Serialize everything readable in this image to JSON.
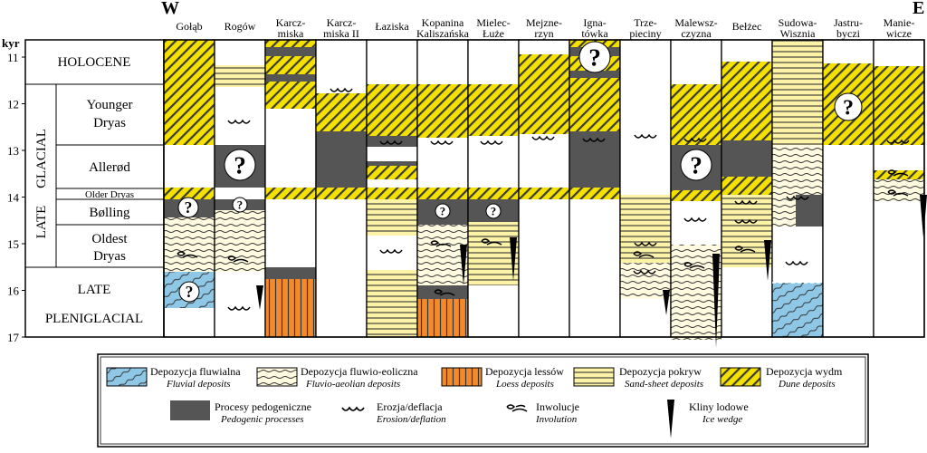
{
  "direction": {
    "west": "W",
    "east": "E"
  },
  "axis": {
    "unit": "kyr",
    "ticks": [
      "11",
      "12",
      "13",
      "14",
      "15",
      "16",
      "17"
    ]
  },
  "periods": {
    "holocene": "HOLOCENE",
    "late_glacial": [
      "LATE",
      "GLACIAL"
    ],
    "younger_dryas": [
      "Younger",
      "Dryas"
    ],
    "allerod": "Allerød",
    "older_dryas": "Older Dryas",
    "bolling": "Bølling",
    "oldest_dryas": [
      "Oldest",
      "Dryas"
    ],
    "late_pleniglacial": [
      "LATE",
      "PLENIGLACIAL"
    ]
  },
  "sites": [
    {
      "name": [
        "Gołąb"
      ]
    },
    {
      "name": [
        "Rogów"
      ]
    },
    {
      "name": [
        "Karcz-",
        "miska"
      ]
    },
    {
      "name": [
        "Karcz-",
        "miska II"
      ]
    },
    {
      "name": [
        "Łaziska"
      ]
    },
    {
      "name": [
        "Kopanina",
        "Kaliszańska"
      ]
    },
    {
      "name": [
        "Mielec-",
        "Łuże"
      ]
    },
    {
      "name": [
        "Mejzne-",
        "rzyn"
      ]
    },
    {
      "name": [
        "Igna-",
        "tówka"
      ]
    },
    {
      "name": [
        "Trze-",
        "pieciny"
      ]
    },
    {
      "name": [
        "Malewsz-",
        "czyzna"
      ]
    },
    {
      "name": [
        "Bełżec"
      ]
    },
    {
      "name": [
        "Sudowa-",
        "Wisznia"
      ]
    },
    {
      "name": [
        "Jastru-",
        "byczi"
      ]
    },
    {
      "name": [
        "Manie-",
        "wicze"
      ]
    }
  ],
  "legend": {
    "fluvial": {
      "pl": "Depozycja fluwialna",
      "en": "Fluvial deposits"
    },
    "fluvio_aeolian": {
      "pl": "Depozycja fluwio-eoliczna",
      "en": "Fluvio-aeolian deposits"
    },
    "loess": {
      "pl": "Depozycja lessów",
      "en": "Loess deposits"
    },
    "sand_sheet": {
      "pl": "Depozycja pokryw",
      "en": "Sand-sheet deposits"
    },
    "dune": {
      "pl": "Depozycja wydm",
      "en": "Dune deposits"
    },
    "pedogenic": {
      "pl": "Procesy pedogeniczne",
      "en": "Pedogenic processes"
    },
    "erosion": {
      "pl": "Erozja/deflacja",
      "en": "Erosion/deflation"
    },
    "involution": {
      "pl": "Inwolucje",
      "en": "Involution"
    },
    "ice_wedge": {
      "pl": "Kliny lodowe",
      "en": "Ice wedge"
    }
  },
  "unknown_mark": "?",
  "colors": {
    "dune": "#f5e100",
    "sand_sheet": "#fdf3a6",
    "fluvio_aeolian": "#fffbe0",
    "loess": "#f28a2a",
    "fluvial": "#8fc7e6",
    "pedogenic": "#555555"
  }
}
